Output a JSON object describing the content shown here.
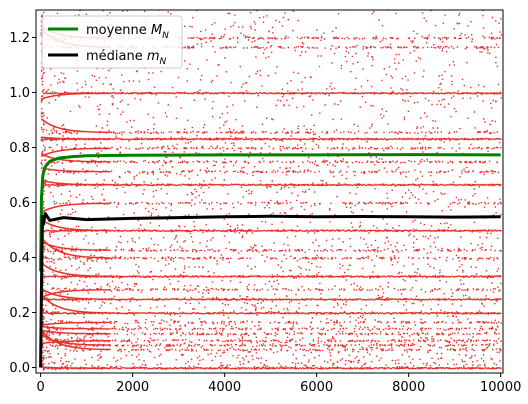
{
  "chart_data": {
    "type": "scatter",
    "xlim": [
      -100,
      10050
    ],
    "ylim": [
      -0.02,
      1.3
    ],
    "x_ticks": [
      0,
      2000,
      4000,
      6000,
      8000,
      10000
    ],
    "x_tick_labels": [
      "0",
      "2000",
      "4000",
      "6000",
      "8000",
      "10000"
    ],
    "y_ticks": [
      0.0,
      0.2,
      0.4,
      0.6,
      0.8,
      1.0,
      1.2
    ],
    "y_tick_labels": [
      "0.0",
      "0.2",
      "0.4",
      "0.6",
      "0.8",
      "1.0",
      "1.2"
    ],
    "grid": false,
    "legend": "top-left",
    "scatter_color": "#e8302a",
    "scatter_dense_levels": [
      0.0,
      0.0667,
      0.0833,
      0.1,
      0.125,
      0.1429,
      0.1667,
      0.2,
      0.25,
      0.2857,
      0.3333,
      0.4,
      0.4286,
      0.5,
      0.6,
      0.6667,
      0.7143,
      0.75,
      0.8,
      0.8333,
      0.8571,
      1.0,
      1.1667,
      1.2
    ],
    "series": [
      {
        "name": "moyenne",
        "subscript": "N",
        "color": "#008000",
        "x": [
          0,
          20,
          50,
          100,
          200,
          400,
          700,
          1000,
          2000,
          4000,
          6000,
          8000,
          10000
        ],
        "y": [
          0.35,
          0.62,
          0.7,
          0.73,
          0.75,
          0.762,
          0.767,
          0.77,
          0.772,
          0.773,
          0.773,
          0.774,
          0.773
        ]
      },
      {
        "name": "médiane",
        "subscript": "N",
        "color": "#000000",
        "x": [
          0,
          20,
          40,
          60,
          100,
          200,
          500,
          1000,
          2000,
          3000,
          4000,
          5000,
          6000,
          7000,
          8000,
          9000,
          10000
        ],
        "y": [
          0.0,
          0.3,
          0.55,
          0.52,
          0.56,
          0.535,
          0.545,
          0.538,
          0.542,
          0.545,
          0.548,
          0.55,
          0.548,
          0.549,
          0.548,
          0.547,
          0.548
        ]
      }
    ]
  }
}
